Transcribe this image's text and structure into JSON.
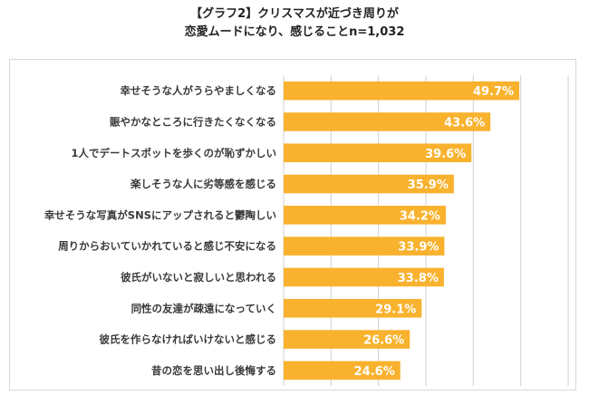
{
  "title": {
    "line1": "【グラフ2】クリスマスが近づき周りが",
    "line2": "恋愛ムードになり、感じることn=1,032"
  },
  "colors": {
    "bar": "#F8B22E",
    "grid": "#d0d0d0",
    "value_text": "#ffffff"
  },
  "chart_data": {
    "type": "bar",
    "orientation": "horizontal",
    "categories": [
      "幸せそうな人がうらやましくなる",
      "賑やかなところに行きたくなくなる",
      "1人でデートスポットを歩くのが恥ずかしい",
      "楽しそうな人に劣等感を感じる",
      "幸せそうな写真がSNSにアップされると鬱陶しい",
      "周りからおいていかれていると感じ不安になる",
      "彼氏がいないと寂しいと思われる",
      "同性の友達が疎遠になっていく",
      "彼氏を作らなければいけないと感じる",
      "昔の恋を思い出し後悔する"
    ],
    "values": [
      49.7,
      43.6,
      39.6,
      35.9,
      34.2,
      33.9,
      33.8,
      29.1,
      26.6,
      24.6
    ],
    "value_labels": [
      "49.7%",
      "43.6%",
      "39.6%",
      "35.9%",
      "34.2%",
      "33.9%",
      "33.8%",
      "29.1%",
      "26.6%",
      "24.6%"
    ],
    "xlim": [
      0,
      60
    ],
    "grid": true,
    "legend": false
  }
}
